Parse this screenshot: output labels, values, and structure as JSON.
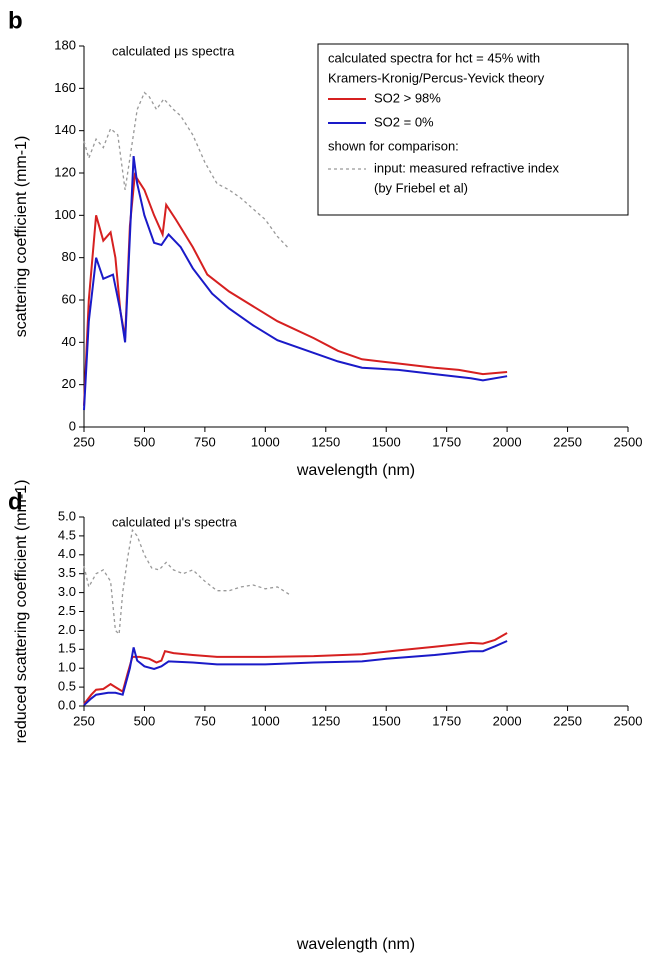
{
  "chart_data": [
    {
      "type": "line",
      "panel_label": "b",
      "title": "calculated μs spectra",
      "xlabel": "wavelength (nm)",
      "ylabel": "scattering coefficient (mm-1)",
      "xlim": [
        250,
        2500
      ],
      "xticks": [
        250,
        500,
        750,
        1000,
        1250,
        1500,
        1750,
        2000,
        2250,
        2500
      ],
      "ylim": [
        0,
        180
      ],
      "yticks": [
        0,
        20,
        40,
        60,
        80,
        100,
        120,
        140,
        160,
        180
      ],
      "legend": "upper right",
      "legend_title": [
        "calculated spectra for hct = 45% with",
        "Kramers-Kronig/Percus-Yevick theory"
      ],
      "legend_comparison": "shown for comparison:",
      "legend_note": "(by Friebel et al)",
      "series": [
        {
          "name": "SO2 > 98%",
          "color": "#d62020",
          "line_style": "solid",
          "x": [
            250,
            270,
            300,
            330,
            360,
            380,
            400,
            420,
            440,
            460,
            500,
            540,
            575,
            590,
            630,
            700,
            760,
            850,
            950,
            1050,
            1200,
            1300,
            1400,
            1550,
            1700,
            1800,
            1850,
            1900,
            2000
          ],
          "values": [
            10,
            60,
            100,
            88,
            92,
            80,
            55,
            42,
            95,
            119,
            112,
            100,
            91,
            105,
            98,
            85,
            72,
            64,
            57,
            50,
            42,
            36,
            32,
            30,
            28,
            27,
            26,
            25,
            26
          ]
        },
        {
          "name": "SO2 = 0%",
          "color": "#1a1ac8",
          "line_style": "solid",
          "x": [
            250,
            270,
            300,
            330,
            370,
            400,
            420,
            440,
            455,
            470,
            500,
            540,
            570,
            600,
            650,
            700,
            780,
            850,
            950,
            1050,
            1200,
            1300,
            1400,
            1550,
            1700,
            1850,
            1900,
            2000
          ],
          "values": [
            8,
            50,
            80,
            70,
            72,
            55,
            40,
            90,
            128,
            115,
            100,
            87,
            86,
            91,
            85,
            75,
            63,
            56,
            48,
            41,
            35,
            31,
            28,
            27,
            25,
            23,
            22,
            24
          ]
        },
        {
          "name": "input: measured refractive index",
          "color": "#999999",
          "line_style": "dashed",
          "x": [
            250,
            270,
            300,
            330,
            360,
            390,
            420,
            440,
            470,
            500,
            520,
            550,
            580,
            620,
            650,
            700,
            750,
            800,
            850,
            900,
            950,
            1000,
            1050,
            1100
          ],
          "values": [
            135,
            127,
            136,
            132,
            141,
            138,
            112,
            127,
            150,
            158,
            156,
            150,
            155,
            150,
            147,
            138,
            125,
            115,
            112,
            108,
            103,
            98,
            90,
            84
          ]
        }
      ]
    },
    {
      "type": "line",
      "panel_label": "d",
      "title": "calculated μ's spectra",
      "xlabel": "wavelength (nm)",
      "ylabel": "reduced scattering coefficient (mm-1)",
      "xlim": [
        250,
        2500
      ],
      "xticks": [
        250,
        500,
        750,
        1000,
        1250,
        1500,
        1750,
        2000,
        2250,
        2500
      ],
      "ylim": [
        0,
        5
      ],
      "yticks": [
        {
          "value": 0,
          "label": "0.0"
        },
        0.5,
        {
          "value": 1,
          "label": "1.0"
        },
        1.5,
        {
          "value": 2,
          "label": "2.0"
        },
        2.5,
        {
          "value": 3,
          "label": "3.0"
        },
        3.5,
        {
          "value": 4,
          "label": "4.0"
        },
        4.5,
        {
          "value": 5,
          "label": "5.0"
        }
      ],
      "series": [
        {
          "color": "#d62020",
          "line_style": "solid",
          "x": [
            250,
            280,
            300,
            330,
            360,
            380,
            410,
            430,
            450,
            480,
            520,
            550,
            570,
            585,
            620,
            700,
            800,
            900,
            1000,
            1200,
            1400,
            1550,
            1700,
            1850,
            1900,
            1950,
            2000
          ],
          "values": [
            0.05,
            0.3,
            0.43,
            0.45,
            0.58,
            0.5,
            0.38,
            0.85,
            1.3,
            1.3,
            1.25,
            1.15,
            1.2,
            1.45,
            1.4,
            1.35,
            1.3,
            1.3,
            1.3,
            1.32,
            1.37,
            1.47,
            1.57,
            1.67,
            1.65,
            1.75,
            1.93
          ]
        },
        {
          "color": "#1a1ac8",
          "line_style": "solid",
          "x": [
            250,
            280,
            300,
            350,
            380,
            410,
            440,
            455,
            470,
            500,
            540,
            570,
            600,
            700,
            800,
            900,
            1000,
            1200,
            1400,
            1500,
            1700,
            1850,
            1900,
            1950,
            2000
          ],
          "values": [
            0.02,
            0.2,
            0.3,
            0.35,
            0.35,
            0.3,
            1.0,
            1.55,
            1.2,
            1.05,
            0.98,
            1.05,
            1.18,
            1.15,
            1.1,
            1.1,
            1.1,
            1.15,
            1.18,
            1.25,
            1.35,
            1.45,
            1.45,
            1.58,
            1.72
          ]
        },
        {
          "color": "#999999",
          "line_style": "dashed",
          "x": [
            250,
            270,
            300,
            330,
            360,
            380,
            395,
            410,
            430,
            450,
            470,
            500,
            530,
            560,
            590,
            620,
            660,
            700,
            750,
            800,
            850,
            900,
            950,
            1000,
            1050,
            1100
          ],
          "values": [
            3.7,
            3.15,
            3.5,
            3.6,
            3.3,
            2.0,
            1.9,
            3.0,
            3.9,
            4.65,
            4.5,
            4.0,
            3.65,
            3.6,
            3.8,
            3.6,
            3.5,
            3.6,
            3.3,
            3.05,
            3.05,
            3.15,
            3.2,
            3.1,
            3.15,
            2.95
          ]
        }
      ]
    }
  ]
}
